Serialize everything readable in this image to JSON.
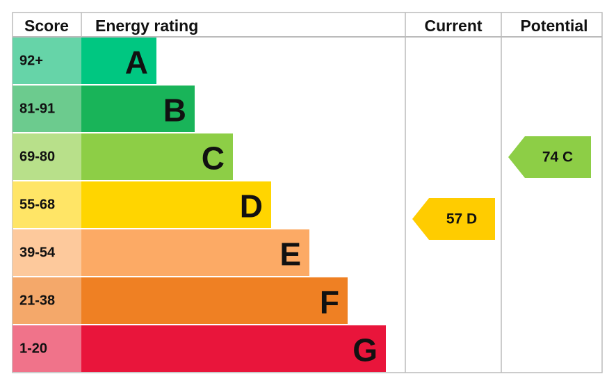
{
  "header": {
    "score": "Score",
    "energy_rating": "Energy rating",
    "current": "Current",
    "potential": "Potential"
  },
  "bands": [
    {
      "score": "92+",
      "letter": "A"
    },
    {
      "score": "81-91",
      "letter": "B"
    },
    {
      "score": "69-80",
      "letter": "C"
    },
    {
      "score": "55-68",
      "letter": "D"
    },
    {
      "score": "39-54",
      "letter": "E"
    },
    {
      "score": "21-38",
      "letter": "F"
    },
    {
      "score": "1-20",
      "letter": "G"
    }
  ],
  "current": {
    "label": "57 D"
  },
  "potential": {
    "label": "74 C"
  }
}
